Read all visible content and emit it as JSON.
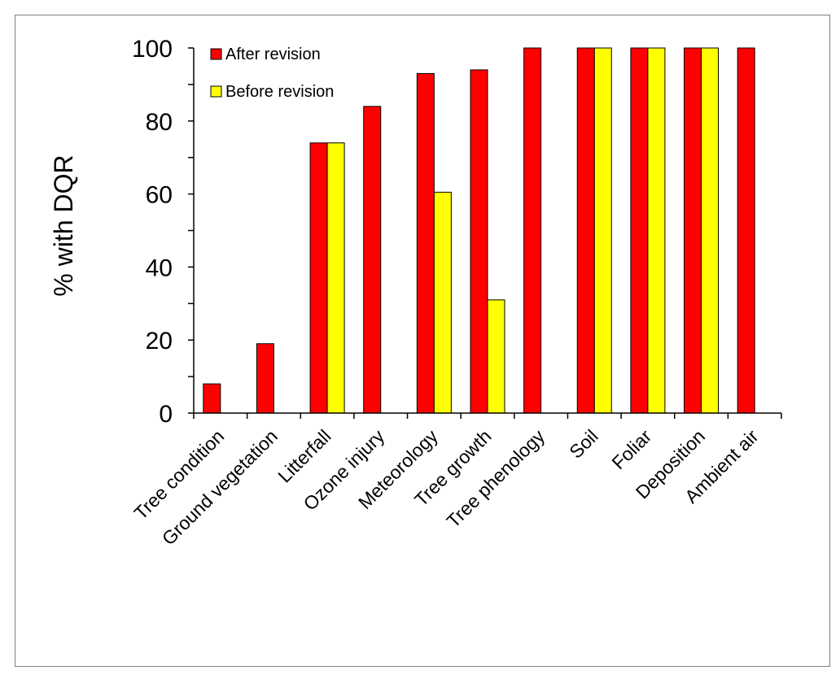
{
  "chart_data": {
    "type": "bar",
    "title": "",
    "xlabel": "",
    "ylabel": "% with DQR",
    "ylim": [
      0,
      100
    ],
    "yticks": [
      0,
      20,
      40,
      60,
      80,
      100
    ],
    "grid": false,
    "legend_position": "top-left",
    "categories": [
      "Tree condition",
      "Ground vegetation",
      "Litterfall",
      "Ozone injury",
      "Meteorology",
      "Tree growth",
      "Tree phenology",
      "Soil",
      "Foliar",
      "Deposition",
      "Ambient air"
    ],
    "series": [
      {
        "name": "After revision",
        "color": "#ff0000",
        "values": [
          8,
          19,
          74,
          84,
          93,
          94,
          100,
          100,
          100,
          100,
          100
        ]
      },
      {
        "name": "Before revision",
        "color": "#ffff00",
        "values": [
          null,
          null,
          74,
          null,
          60.5,
          31,
          null,
          100,
          100,
          100,
          null
        ]
      }
    ]
  }
}
